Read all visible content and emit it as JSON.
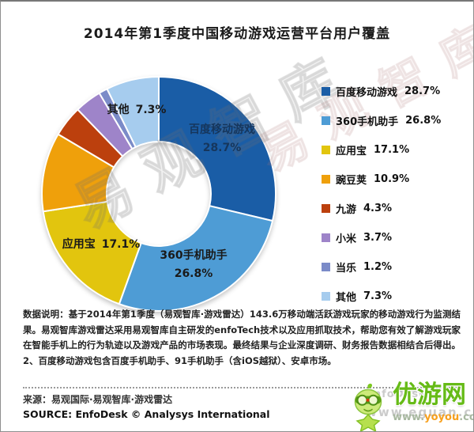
{
  "title": "2014年第1季度中国移动游戏运营平台用户覆盖",
  "chart_data": {
    "type": "pie",
    "subtype": "donut",
    "title": "2014年第1季度中国移动游戏运营平台用户覆盖",
    "start_angle_deg": 0,
    "direction": "clockwise",
    "legend_position": "right",
    "inner_radius_ratio": 0.45,
    "series": [
      {
        "name": "百度移动游戏",
        "value": 28.7,
        "pct_label": "28.7%",
        "color": "#1A5DA6"
      },
      {
        "name": "360手机助手",
        "value": 26.8,
        "pct_label": "26.8%",
        "color": "#4E9CD5"
      },
      {
        "name": "应用宝",
        "value": 17.1,
        "pct_label": "17.1%",
        "color": "#E2C50E"
      },
      {
        "name": "豌豆荚",
        "value": 10.9,
        "pct_label": "10.9%",
        "color": "#EFA00B"
      },
      {
        "name": "九游",
        "value": 4.3,
        "pct_label": "4.3%",
        "color": "#BC400D"
      },
      {
        "name": "小米",
        "value": 3.7,
        "pct_label": "3.7%",
        "color": "#9E84C9"
      },
      {
        "name": "当乐",
        "value": 1.2,
        "pct_label": "1.2%",
        "color": "#7B8BC8"
      },
      {
        "name": "其他",
        "value": 7.3,
        "pct_label": "7.3%",
        "color": "#A6CCEE"
      }
    ]
  },
  "watermarks": [
    "易观智库",
    "易观智库"
  ],
  "note": "数据说明：基于2014年第1季度（易观智库·游戏雷达）143.6万移动端活跃游戏玩家的移动游戏行为监测结果。易观智库游戏雷达采用易观智库自主研发的enfoTech技术以及应用抓取技术，帮助您有效了解游戏玩家在智能手机上的行为轨迹以及游戏产品的市场表现。最终结果与企业深度调研、财务报告数据相结合后得出。2、百度移动游戏包含百度手机助手、91手机助手（含iOS越狱）、安卓市场。",
  "source_cn": "来源：易观国际·易观智库·游戏雷达",
  "source_en": "SOURCE: EnfoDesk © Analysys International",
  "enfodesk_watermark": {
    "line1": "EnfoDesk",
    "line2": "www.eguan.cn"
  },
  "yoyou": {
    "name": "优游网",
    "url_prefix": "www.",
    "url_brand": "yoyou",
    "url_suffix": ".com"
  }
}
